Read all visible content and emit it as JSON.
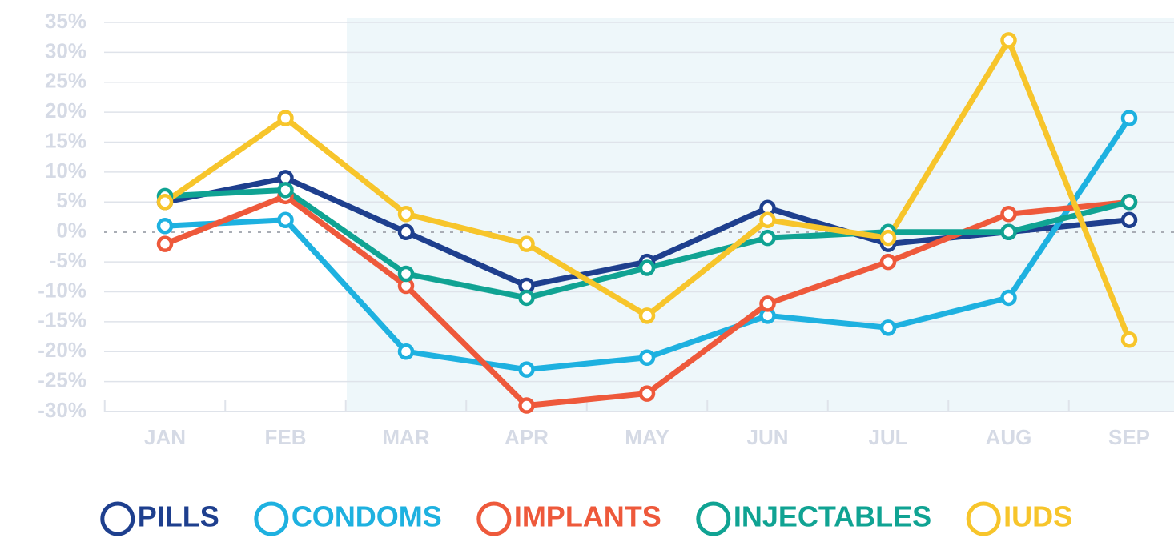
{
  "chart_data": {
    "type": "line",
    "categories": [
      "JAN",
      "FEB",
      "MAR",
      "APR",
      "MAY",
      "JUN",
      "JUL",
      "AUG",
      "SEP"
    ],
    "series": [
      {
        "name": "PILLS",
        "color": "#1e3f8e",
        "values": [
          5,
          9,
          0,
          -9,
          -5,
          4,
          -2,
          0,
          2
        ]
      },
      {
        "name": "CONDOMS",
        "color": "#1eb1e0",
        "values": [
          1,
          2,
          -20,
          -23,
          -21,
          -14,
          -16,
          -11,
          19
        ]
      },
      {
        "name": "IMPLANTS",
        "color": "#ee593b",
        "values": [
          -2,
          6,
          -9,
          -29,
          -27,
          -12,
          -5,
          3,
          5
        ]
      },
      {
        "name": "INJECTABLES",
        "color": "#10a393",
        "values": [
          6,
          7,
          -7,
          -11,
          -6,
          -1,
          0,
          0,
          5
        ]
      },
      {
        "name": "IUDS",
        "color": "#f7c52b",
        "values": [
          5,
          19,
          3,
          -2,
          -14,
          2,
          -1,
          32,
          -18
        ]
      }
    ],
    "ylim": [
      -30,
      35
    ],
    "yticks": [
      {
        "value": -30,
        "label": "-30%"
      },
      {
        "value": -25,
        "label": "-25%"
      },
      {
        "value": -20,
        "label": "-20%"
      },
      {
        "value": -15,
        "label": "-15%"
      },
      {
        "value": -10,
        "label": "-10%"
      },
      {
        "value": -5,
        "label": "-5%"
      },
      {
        "value": 0,
        "label": "0%"
      },
      {
        "value": 5,
        "label": "5%"
      },
      {
        "value": 10,
        "label": "10%"
      },
      {
        "value": 15,
        "label": "15%"
      },
      {
        "value": 20,
        "label": "20%"
      },
      {
        "value": 25,
        "label": "25%"
      },
      {
        "value": 30,
        "label": "30%"
      },
      {
        "value": 35,
        "label": "35%"
      }
    ],
    "grid": true,
    "legend": "bottom"
  }
}
